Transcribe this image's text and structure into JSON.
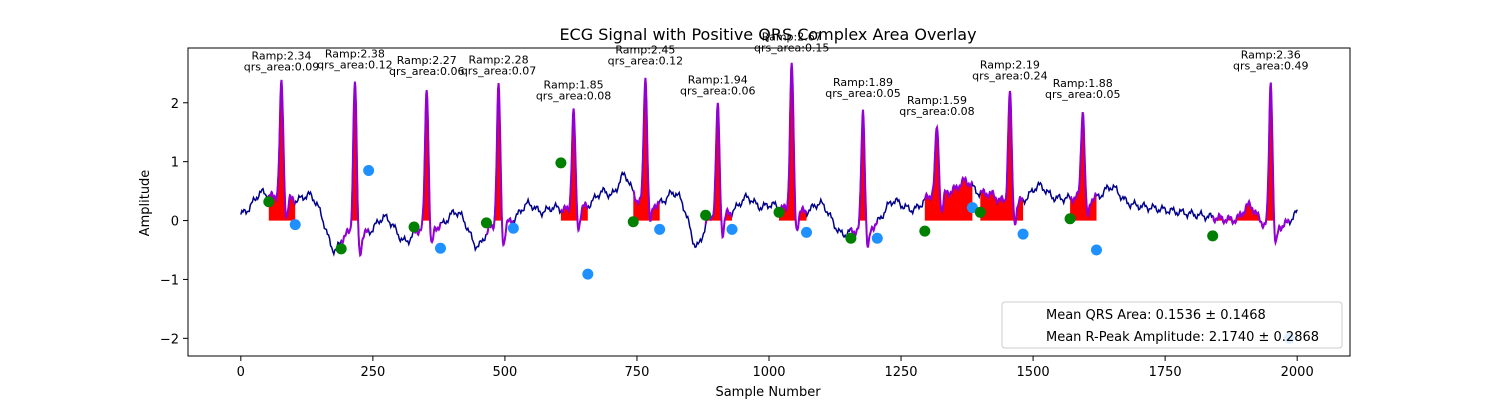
{
  "chart_data": {
    "type": "line",
    "title": "ECG Signal with Positive QRS Complex Area Overlay",
    "xlabel": "Sample Number",
    "ylabel": "Amplitude",
    "xlim": [
      -100,
      2100
    ],
    "ylim": [
      -2.3,
      2.93
    ],
    "xticks": [
      0,
      250,
      500,
      750,
      1000,
      1250,
      1500,
      1750,
      2000
    ],
    "yticks": [
      -2,
      -1,
      0,
      1,
      2
    ],
    "grid": false,
    "legend": {
      "position": "lower-right",
      "entries": [
        "Mean QRS Area: 0.1536 ± 0.1468",
        "Mean R-Peak Amplitude: 2.1740 ± 0.2868"
      ]
    },
    "colors": {
      "signal": "#00008b",
      "qrs_segment": "#9400d3",
      "area": "#ff0000",
      "onset": "#008000",
      "offset": "#1e90ff"
    },
    "beats": [
      {
        "r": 77,
        "amp": 2.34,
        "label": "Ramp:2.34",
        "area_label": "qrs_area:0.09",
        "onset": [
          53,
          0.32
        ],
        "offset": [
          103,
          -0.07
        ],
        "base": 0.45,
        "pre": 0.2
      },
      {
        "r": 216,
        "amp": 2.38,
        "label": "Ramp:2.38",
        "area_label": "qrs_area:0.12",
        "onset": [
          190,
          -0.48
        ],
        "offset": [
          242,
          0.85
        ],
        "base": -0.25,
        "pre": -0.45
      },
      {
        "r": 352,
        "amp": 2.27,
        "label": "Ramp:2.27",
        "area_label": "qrs_area:0.06",
        "onset": [
          328,
          -0.11
        ],
        "offset": [
          378,
          -0.47
        ],
        "base": -0.12,
        "pre": -0.2
      },
      {
        "r": 488,
        "amp": 2.28,
        "label": "Ramp:2.28",
        "area_label": "qrs_area:0.07",
        "onset": [
          465,
          -0.04
        ],
        "offset": [
          516,
          -0.13
        ],
        "base": -0.08,
        "pre": -0.35
      },
      {
        "r": 630,
        "amp": 1.85,
        "label": "Ramp:1.85",
        "area_label": "qrs_area:0.08",
        "onset": [
          606,
          0.98
        ],
        "offset": [
          657,
          -0.91
        ],
        "base": 0.2,
        "pre": 0.1
      },
      {
        "r": 766,
        "amp": 2.45,
        "label": "Ramp:2.45",
        "area_label": "qrs_area:0.12",
        "onset": [
          743,
          -0.02
        ],
        "offset": [
          793,
          -0.15
        ],
        "base": 0.3,
        "pre": 0.5
      },
      {
        "r": 903,
        "amp": 1.94,
        "label": "Ramp:1.94",
        "area_label": "qrs_area:0.06",
        "onset": [
          880,
          0.09
        ],
        "offset": [
          930,
          -0.15
        ],
        "base": 0.1,
        "pre": -0.6
      },
      {
        "r": 1043,
        "amp": 2.67,
        "label": "Ramp:2.67",
        "area_label": "qrs_area:0.15",
        "onset": [
          1019,
          0.14
        ],
        "offset": [
          1071,
          -0.2
        ],
        "base": 0.2,
        "pre": 0.1
      },
      {
        "r": 1178,
        "amp": 1.89,
        "label": "Ramp:1.89",
        "area_label": "qrs_area:0.05",
        "onset": [
          1155,
          -0.3
        ],
        "offset": [
          1205,
          -0.3
        ],
        "base": -0.2,
        "pre": -0.15
      },
      {
        "r": 1318,
        "amp": 1.59,
        "label": "Ramp:1.59",
        "area_label": "qrs_area:0.08",
        "onset": [
          1295,
          -0.18
        ],
        "offset": [
          1385,
          0.22
        ],
        "base": 0.5,
        "pre": -0.1
      },
      {
        "r": 1456,
        "amp": 2.19,
        "label": "Ramp:2.19",
        "area_label": "qrs_area:0.24",
        "onset": [
          1400,
          0.14
        ],
        "offset": [
          1481,
          -0.23
        ],
        "base": 0.3,
        "pre": 0.1
      },
      {
        "r": 1594,
        "amp": 1.88,
        "label": "Ramp:1.88",
        "area_label": "qrs_area:0.05",
        "onset": [
          1570,
          0.03
        ],
        "offset": [
          1620,
          -0.5
        ],
        "base": 0.4,
        "pre": 0.0
      },
      {
        "r": 1950,
        "amp": 2.36,
        "label": "Ramp:2.36",
        "area_label": "qrs_area:0.49",
        "onset": [
          1840,
          -0.26
        ],
        "offset": [
          1985,
          -2.0
        ],
        "base": -0.1,
        "pre": 0.3
      }
    ]
  }
}
